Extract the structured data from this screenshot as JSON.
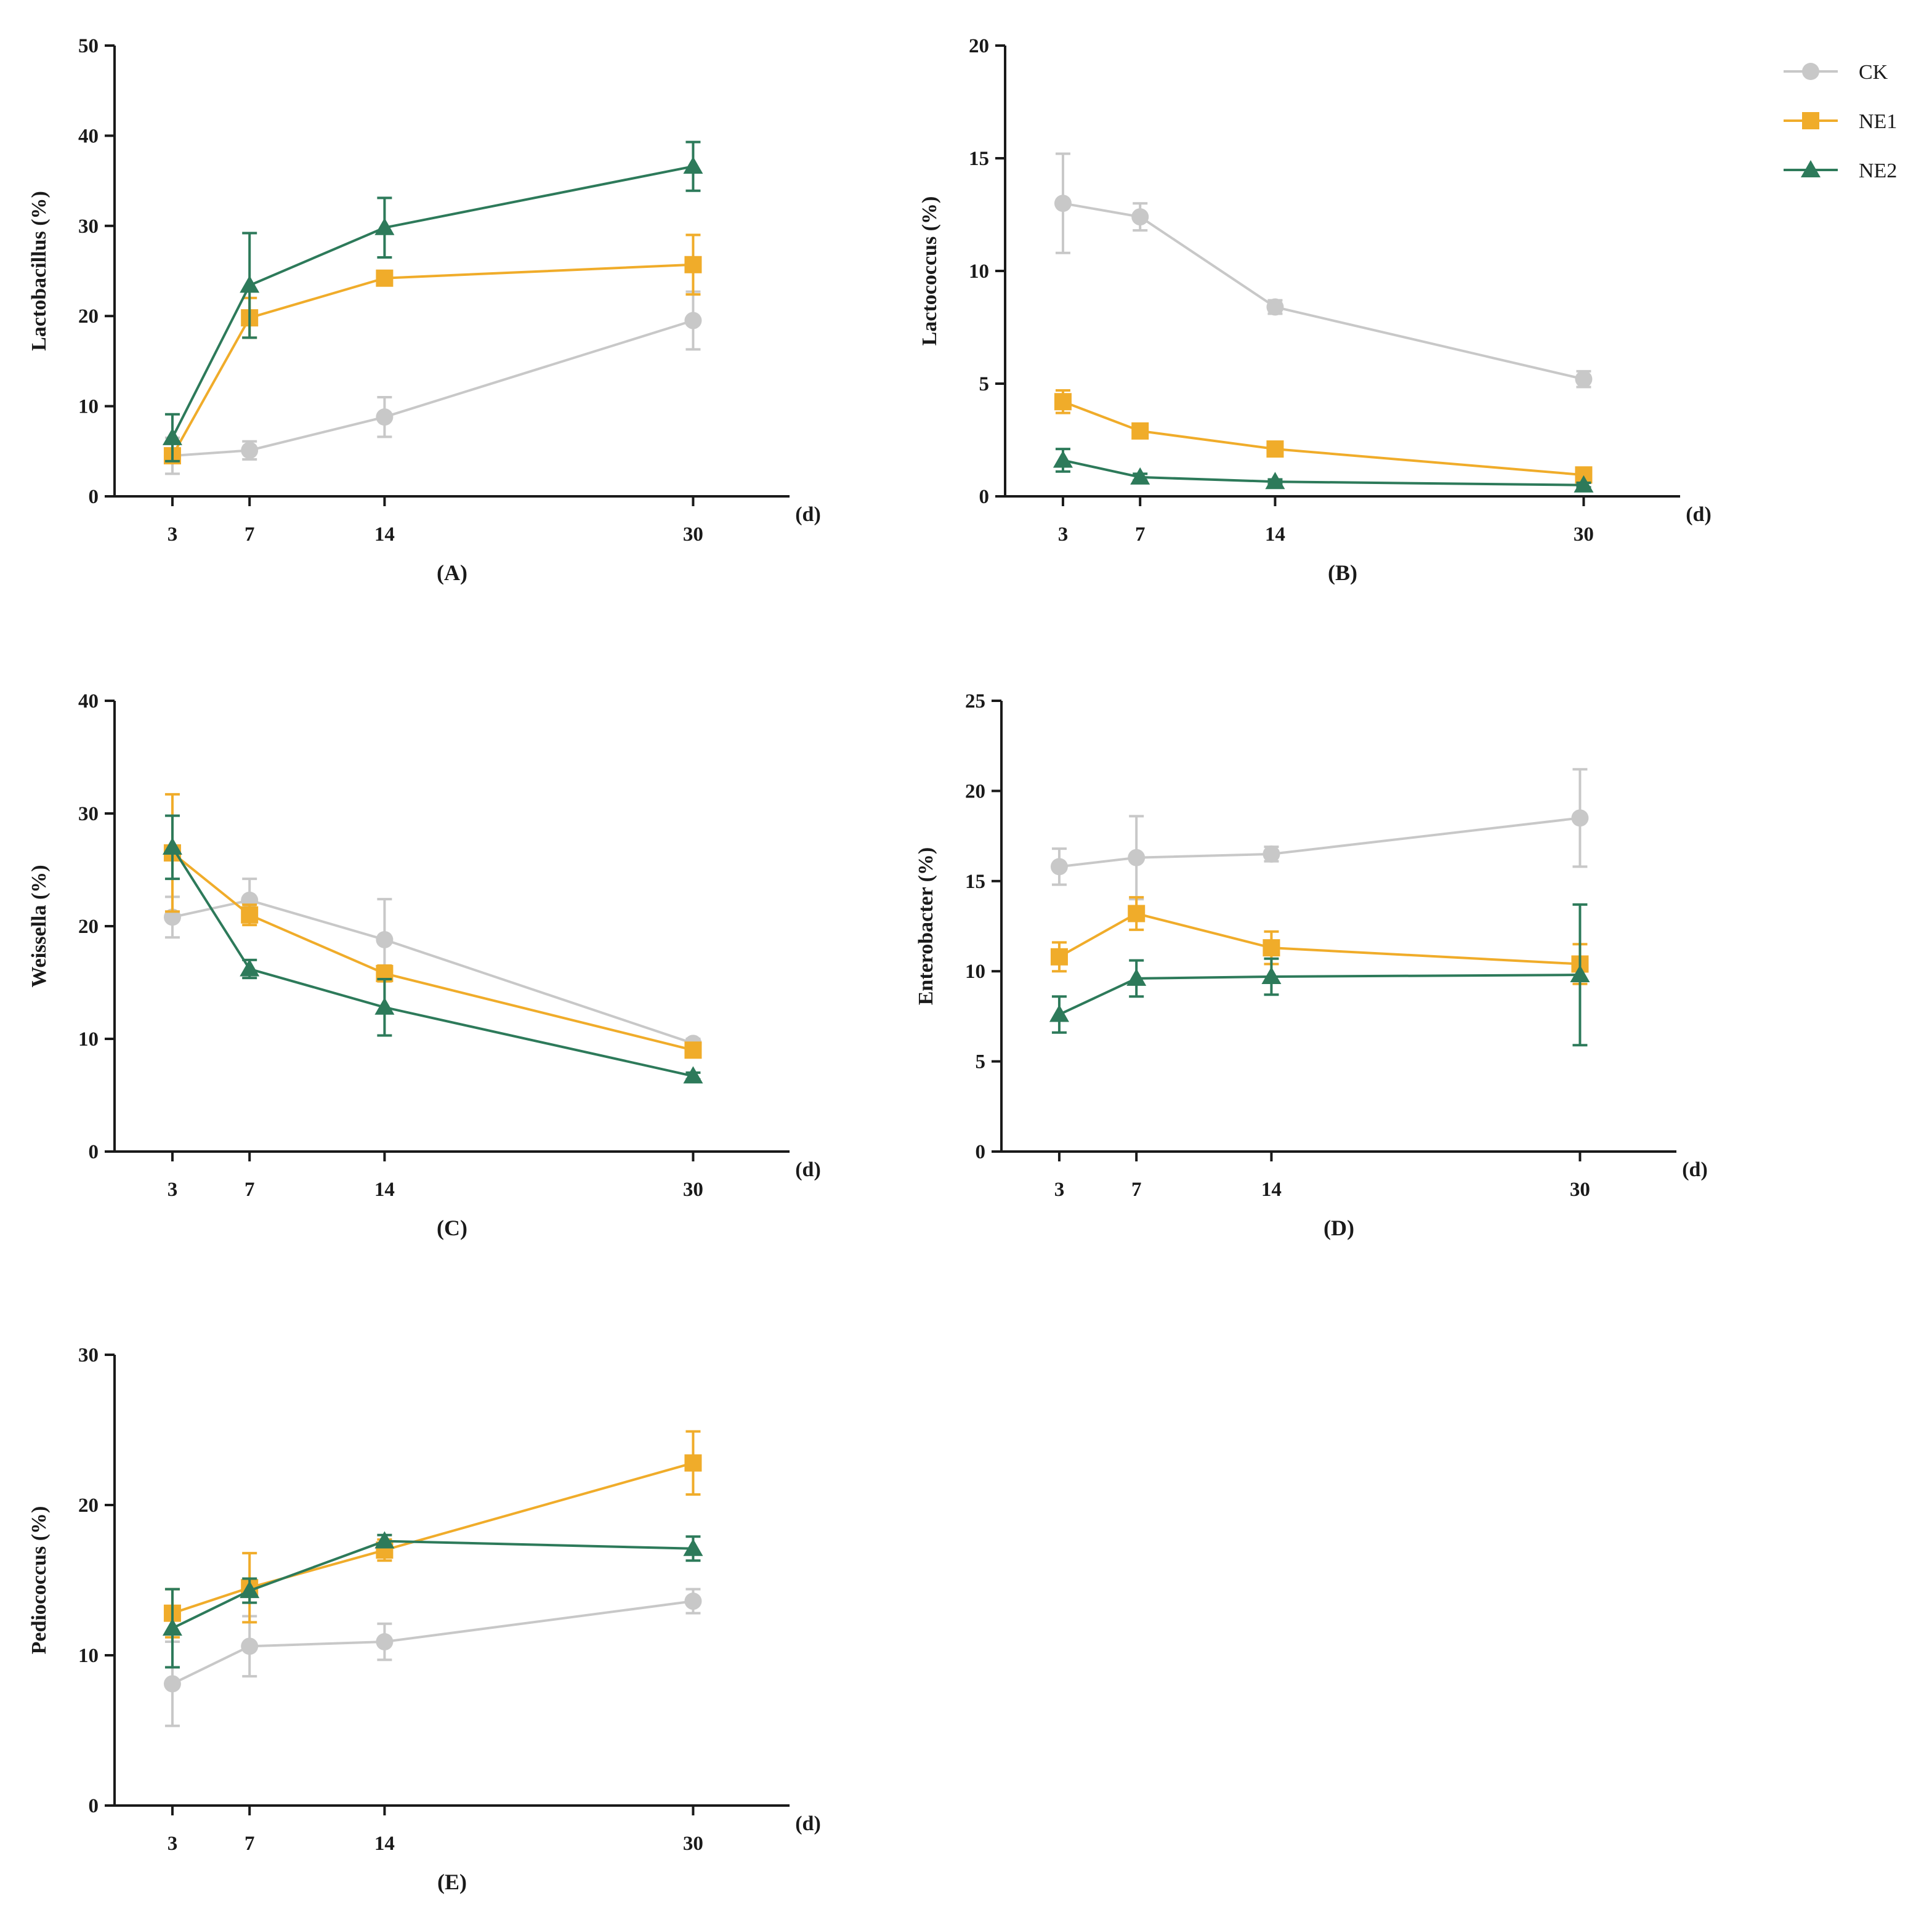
{
  "legend": [
    {
      "name": "CK",
      "color": "#c8c8c8",
      "marker": "circle"
    },
    {
      "name": "NE1",
      "color": "#f0ac2a",
      "marker": "square"
    },
    {
      "name": "NE2",
      "color": "#2d7a5a",
      "marker": "triangle"
    }
  ],
  "chart_data": [
    {
      "id": "A",
      "type": "line",
      "panel_label": "(A)",
      "ylabel": "Lactobacillus (%)",
      "xlabel": "(d)",
      "x": [
        3,
        7,
        14,
        30
      ],
      "xlim": [
        0,
        35
      ],
      "ylim": [
        0,
        50
      ],
      "yticks": [
        0,
        10,
        20,
        30,
        40,
        50
      ],
      "series": [
        {
          "name": "CK",
          "values": [
            4.5,
            5.1,
            8.8,
            19.5
          ],
          "errors": [
            2.0,
            1.0,
            2.2,
            3.2
          ]
        },
        {
          "name": "NE1",
          "values": [
            4.5,
            19.8,
            24.2,
            25.7
          ],
          "errors": [
            0.8,
            2.2,
            0.6,
            3.3
          ]
        },
        {
          "name": "NE2",
          "values": [
            6.5,
            23.4,
            29.8,
            36.6
          ],
          "errors": [
            2.6,
            5.8,
            3.3,
            2.7
          ]
        }
      ]
    },
    {
      "id": "B",
      "type": "line",
      "panel_label": "(B)",
      "ylabel": "Lactococcus (%)",
      "xlabel": "(d)",
      "x": [
        3,
        7,
        14,
        30
      ],
      "xlim": [
        0,
        35
      ],
      "ylim": [
        0,
        20
      ],
      "yticks": [
        0,
        5,
        10,
        15,
        20
      ],
      "series": [
        {
          "name": "CK",
          "values": [
            13.0,
            12.4,
            8.4,
            5.2
          ],
          "errors": [
            2.2,
            0.6,
            0.3,
            0.35
          ]
        },
        {
          "name": "NE1",
          "values": [
            4.2,
            2.9,
            2.1,
            0.95
          ],
          "errors": [
            0.5,
            0.2,
            0.2,
            0.15
          ]
        },
        {
          "name": "NE2",
          "values": [
            1.6,
            0.85,
            0.65,
            0.5
          ],
          "errors": [
            0.5,
            0.15,
            0.1,
            0.1
          ]
        }
      ]
    },
    {
      "id": "C",
      "type": "line",
      "panel_label": "(C)",
      "ylabel": "Weissella (%)",
      "xlabel": "(d)",
      "x": [
        3,
        7,
        14,
        30
      ],
      "xlim": [
        0,
        35
      ],
      "ylim": [
        0,
        40
      ],
      "yticks": [
        0,
        10,
        20,
        30,
        40
      ],
      "series": [
        {
          "name": "CK",
          "values": [
            20.8,
            22.3,
            18.8,
            9.6
          ],
          "errors": [
            1.8,
            1.9,
            3.6,
            0.4
          ]
        },
        {
          "name": "NE1",
          "values": [
            26.5,
            21.0,
            15.8,
            9.0
          ],
          "errors": [
            5.2,
            0.9,
            0.7,
            0.4
          ]
        },
        {
          "name": "NE2",
          "values": [
            27.0,
            16.2,
            12.8,
            6.7
          ],
          "errors": [
            2.8,
            0.8,
            2.5,
            0.3
          ]
        }
      ]
    },
    {
      "id": "D",
      "type": "line",
      "panel_label": "(D)",
      "ylabel": "Enterobacter (%)",
      "xlabel": "(d)",
      "x": [
        3,
        7,
        14,
        30
      ],
      "xlim": [
        0,
        35
      ],
      "ylim": [
        0,
        25
      ],
      "yticks": [
        0,
        5,
        10,
        15,
        20,
        25
      ],
      "series": [
        {
          "name": "CK",
          "values": [
            15.8,
            16.3,
            16.5,
            18.5
          ],
          "errors": [
            1.0,
            2.3,
            0.4,
            2.7
          ]
        },
        {
          "name": "NE1",
          "values": [
            10.8,
            13.2,
            11.3,
            10.4
          ],
          "errors": [
            0.8,
            0.9,
            0.9,
            1.1
          ]
        },
        {
          "name": "NE2",
          "values": [
            7.6,
            9.6,
            9.7,
            9.8
          ],
          "errors": [
            1.0,
            1.0,
            1.0,
            3.9
          ]
        }
      ]
    },
    {
      "id": "E",
      "type": "line",
      "panel_label": "(E)",
      "ylabel": "Pediococcus (%)",
      "xlabel": "(d)",
      "x": [
        3,
        7,
        14,
        30
      ],
      "xlim": [
        0,
        35
      ],
      "ylim": [
        0,
        30
      ],
      "yticks": [
        0,
        10,
        20,
        30
      ],
      "series": [
        {
          "name": "CK",
          "values": [
            8.1,
            10.6,
            10.9,
            13.6
          ],
          "errors": [
            2.8,
            2.0,
            1.2,
            0.8
          ]
        },
        {
          "name": "NE1",
          "values": [
            12.8,
            14.5,
            17.0,
            22.8
          ],
          "errors": [
            1.6,
            2.3,
            0.7,
            2.1
          ]
        },
        {
          "name": "NE2",
          "values": [
            11.8,
            14.3,
            17.6,
            17.1
          ],
          "errors": [
            2.6,
            0.8,
            0.4,
            0.8
          ]
        }
      ]
    }
  ]
}
